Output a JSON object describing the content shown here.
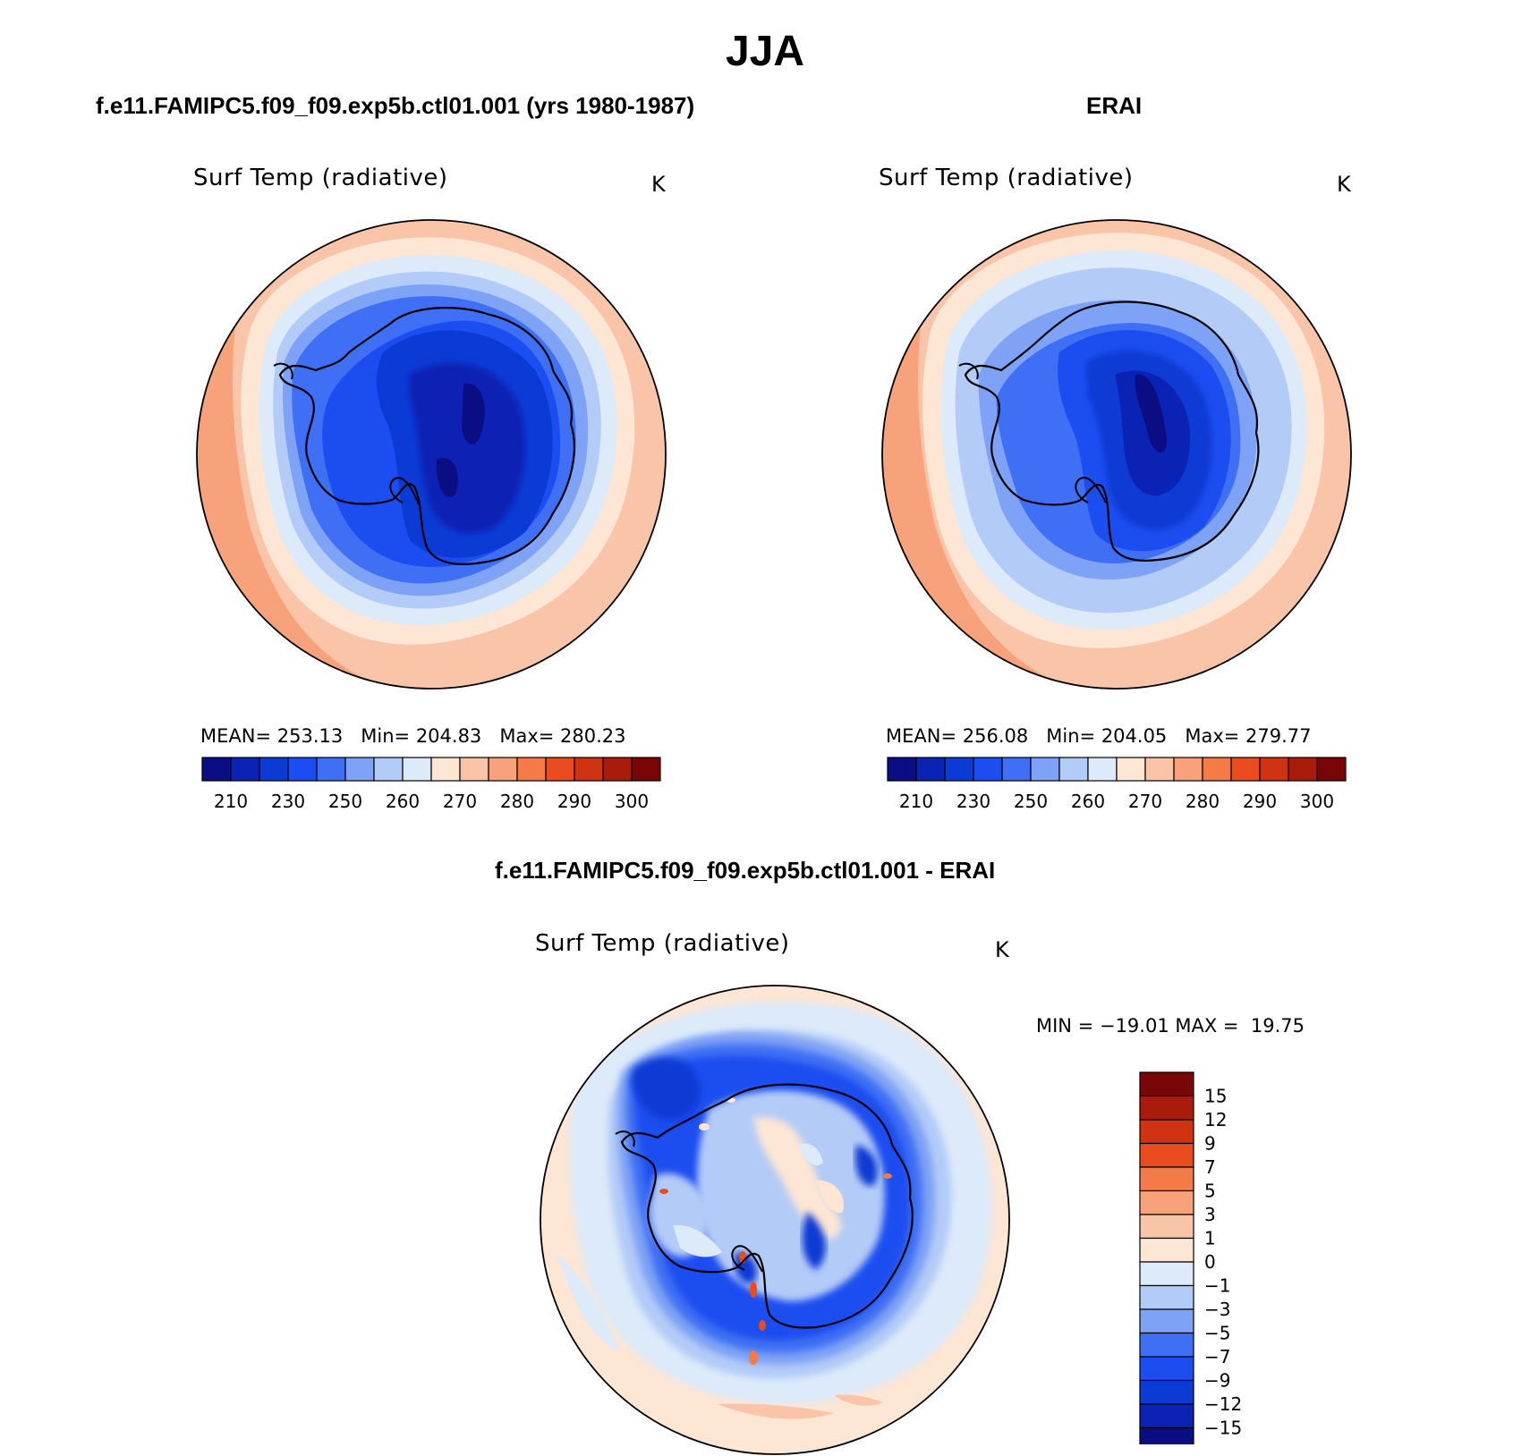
{
  "main_title": "JJA",
  "colors": {
    "abs": [
      "#0a0e82",
      "#0a23b4",
      "#0c3ad4",
      "#1c4df0",
      "#3f6ff4",
      "#7ea2f5",
      "#b3cbf7",
      "#dceafa",
      "#fde6d4",
      "#fac4a8",
      "#f8a27c",
      "#f47a48",
      "#ea4b1f",
      "#d03312",
      "#a91c0b",
      "#780606"
    ],
    "diff": [
      "#0a0e82",
      "#0a23b4",
      "#0c3ad4",
      "#1c4df0",
      "#3f6ff4",
      "#7ea2f5",
      "#b3cbf7",
      "#dceafa",
      "#fde6d4",
      "#fac4a8",
      "#f8a27c",
      "#f47a48",
      "#ea4b1f",
      "#d03312",
      "#a91c0b",
      "#780606"
    ]
  },
  "panels": [
    {
      "case_title": "f.e11.FAMIPC5.f09_f09.exp5b.ctl01.001 (yrs 1980-1987)",
      "var_title": "Surf Temp (radiative)",
      "units": "K",
      "mean_label": "MEAN=",
      "mean": "253.13",
      "min_label": "Min=",
      "min": "204.83",
      "max_label": "Max=",
      "max": "280.23",
      "colorbar_labels": [
        "210",
        "230",
        "250",
        "260",
        "270",
        "280",
        "290",
        "300"
      ]
    },
    {
      "case_title": "ERAI",
      "var_title": "Surf Temp (radiative)",
      "units": "K",
      "mean_label": "MEAN=",
      "mean": "256.08",
      "min_label": "Min=",
      "min": "204.05",
      "max_label": "Max=",
      "max": "279.77",
      "colorbar_labels": [
        "210",
        "230",
        "250",
        "260",
        "270",
        "280",
        "290",
        "300"
      ]
    },
    {
      "case_title": "f.e11.FAMIPC5.f09_f09.exp5b.ctl01.001 - ERAI",
      "var_title": "Surf Temp (radiative)",
      "units": "K",
      "minmax_text": "MIN = −19.01 MAX =  19.75",
      "colorbar_labels": [
        "15",
        "12",
        "9",
        "7",
        "5",
        "3",
        "1",
        "0",
        "−1",
        "−3",
        "−5",
        "−7",
        "−9",
        "−12",
        "−15"
      ]
    }
  ]
}
